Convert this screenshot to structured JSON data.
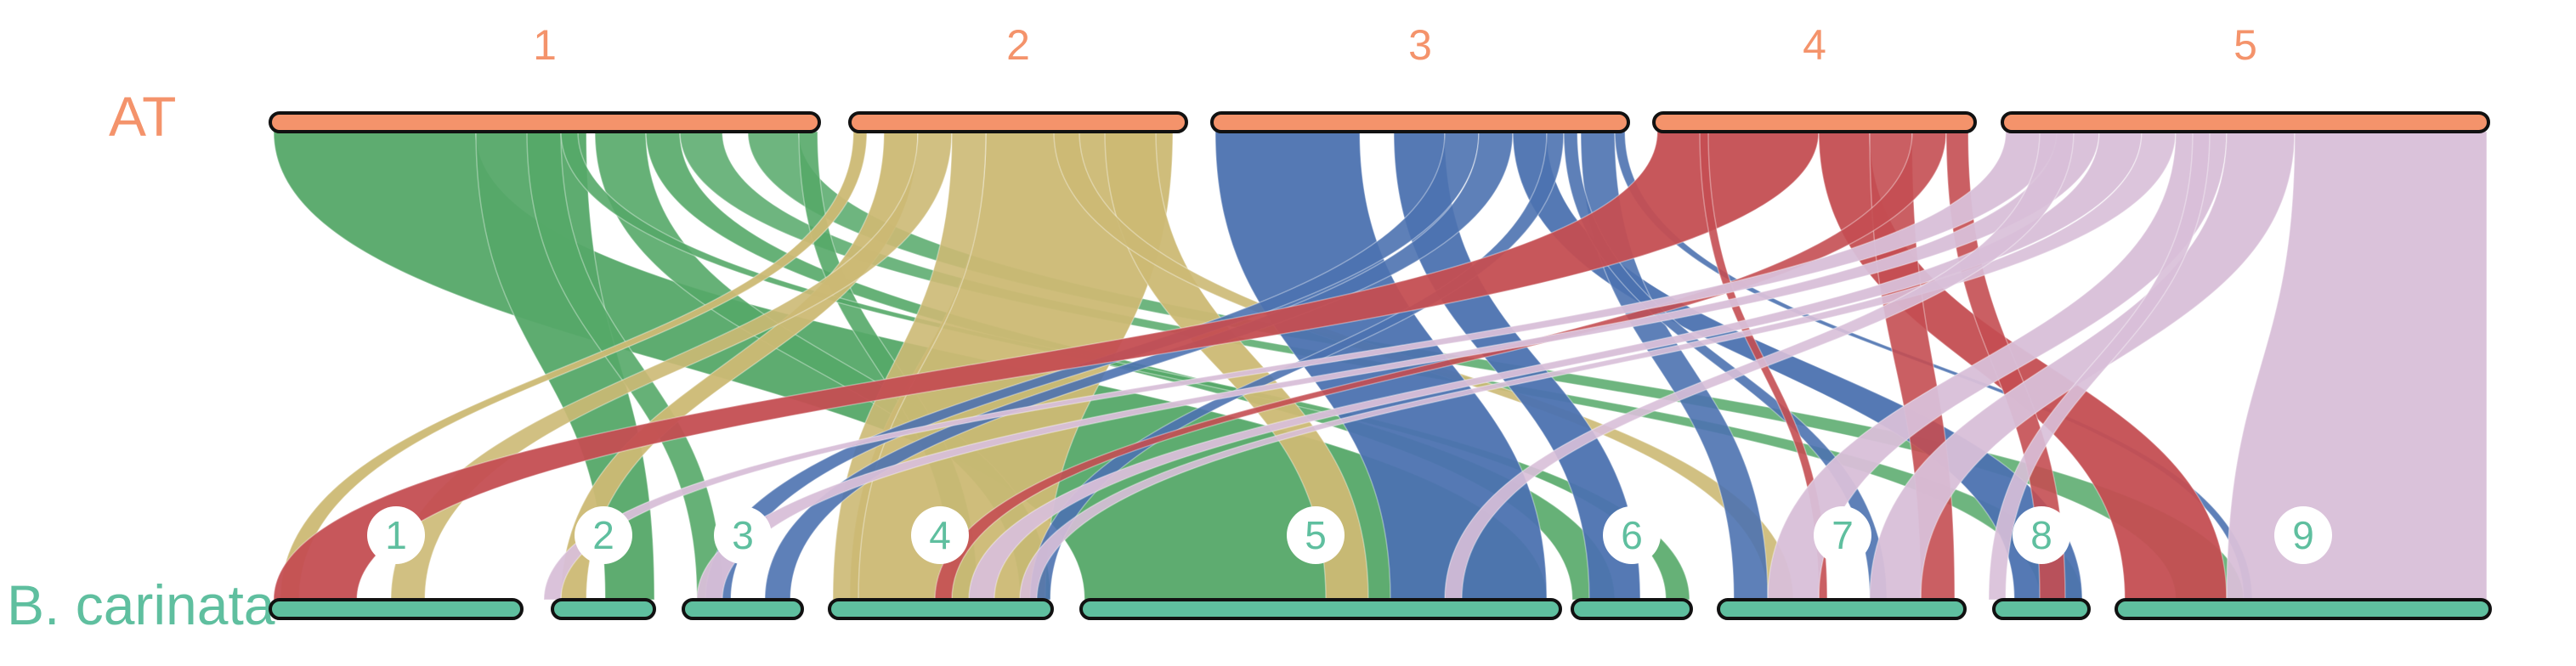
{
  "figure": {
    "type": "synteny-ribbon-plot",
    "top_genome": {
      "name": "AT",
      "color": "#f4936b"
    },
    "bottom_genome": {
      "name": "B. carinata",
      "color": "#5fbf9f"
    },
    "top_chromosomes": [
      {
        "id": "1",
        "label": "1",
        "color": "#f4936b"
      },
      {
        "id": "2",
        "label": "2",
        "color": "#f4936b"
      },
      {
        "id": "3",
        "label": "3",
        "color": "#f4936b"
      },
      {
        "id": "4",
        "label": "4",
        "color": "#f4936b"
      },
      {
        "id": "5",
        "label": "5",
        "color": "#f4936b"
      }
    ],
    "bottom_chromosomes": [
      {
        "id": "1",
        "label": "1"
      },
      {
        "id": "2",
        "label": "2"
      },
      {
        "id": "3",
        "label": "3"
      },
      {
        "id": "4",
        "label": "4"
      },
      {
        "id": "5",
        "label": "5"
      },
      {
        "id": "6",
        "label": "6"
      },
      {
        "id": "7",
        "label": "7"
      },
      {
        "id": "8",
        "label": "8"
      },
      {
        "id": "9",
        "label": "9"
      }
    ],
    "ribbon_colors": {
      "1": "#55a868",
      "2": "#ccb974",
      "3": "#4c72b0",
      "4": "#c44e52",
      "5": "#d8bfd8"
    }
  }
}
